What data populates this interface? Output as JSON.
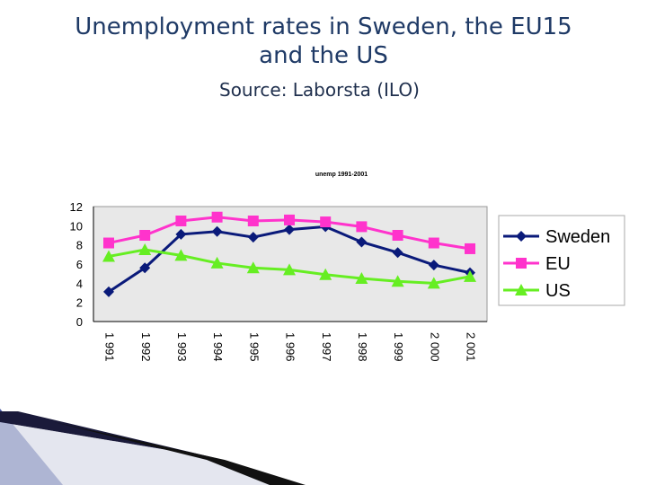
{
  "slide": {
    "title_line1": "Unemployment rates in Sweden, the EU15",
    "title_line2": "and the US",
    "subtitle": "Source: Laborsta (ILO)"
  },
  "chart_data": {
    "type": "line",
    "title": "unemp 1991-2001",
    "categories": [
      "1 991",
      "1 992",
      "1 993",
      "1 994",
      "1 995",
      "1 996",
      "1 997",
      "1 998",
      "1 999",
      "2 000",
      "2 001"
    ],
    "ylim": [
      0,
      12
    ],
    "yticks": [
      0,
      2,
      4,
      6,
      8,
      10,
      12
    ],
    "grid": false,
    "legend_position": "right",
    "series": [
      {
        "name": "Sweden",
        "color": "#0a1a7a",
        "marker": "diamond",
        "values": [
          3.1,
          5.6,
          9.1,
          9.4,
          8.8,
          9.6,
          9.9,
          8.3,
          7.2,
          5.9,
          5.1
        ]
      },
      {
        "name": "EU",
        "color": "#ff33cc",
        "marker": "square",
        "values": [
          8.2,
          9.0,
          10.5,
          10.9,
          10.5,
          10.6,
          10.4,
          9.9,
          9.0,
          8.2,
          7.6
        ]
      },
      {
        "name": "US",
        "color": "#66ee22",
        "marker": "triangle",
        "values": [
          6.8,
          7.5,
          6.9,
          6.1,
          5.6,
          5.4,
          4.9,
          4.5,
          4.2,
          4.0,
          4.7
        ]
      }
    ]
  }
}
